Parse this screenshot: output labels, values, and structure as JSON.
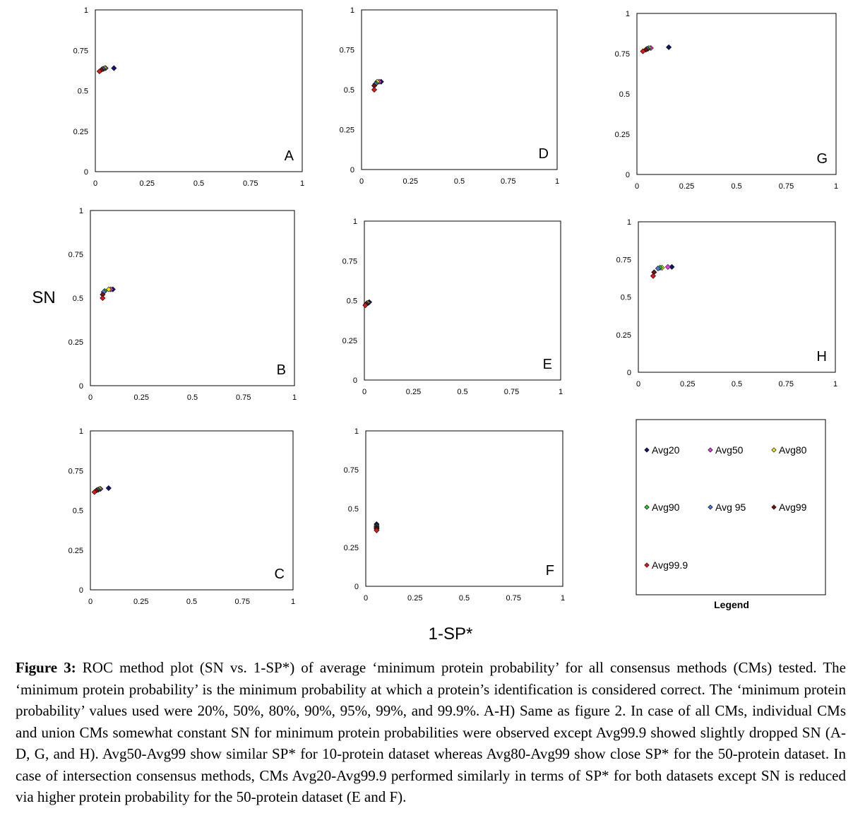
{
  "figure": {
    "y_axis_label": "SN",
    "x_axis_label": "1-SP*",
    "legend_title": "Legend",
    "tick_labels": [
      "0",
      "0.25",
      "0.5",
      "0.75",
      "1"
    ]
  },
  "legend": [
    {
      "name": "Avg20",
      "color": "#14146e"
    },
    {
      "name": "Avg50",
      "color": "#e040e0"
    },
    {
      "name": "Avg80",
      "color": "#e6e61e"
    },
    {
      "name": "Avg90",
      "color": "#2ec82e"
    },
    {
      "name": "Avg 95",
      "color": "#4a78d6"
    },
    {
      "name": "Avg99",
      "color": "#7a1010"
    },
    {
      "name": "Avg99.9",
      "color": "#e01818"
    }
  ],
  "chart_data": [
    {
      "panel": "A",
      "type": "scatter",
      "xlim": [
        0,
        1
      ],
      "ylim": [
        0,
        1
      ],
      "grid": false,
      "series": [
        {
          "name": "Avg20",
          "x": [
            0.09
          ],
          "y": [
            0.64
          ]
        },
        {
          "name": "Avg50",
          "x": [
            0.05
          ],
          "y": [
            0.64
          ]
        },
        {
          "name": "Avg80",
          "x": [
            0.045
          ],
          "y": [
            0.64
          ]
        },
        {
          "name": "Avg90",
          "x": [
            0.04
          ],
          "y": [
            0.635
          ]
        },
        {
          "name": "Avg 95",
          "x": [
            0.035
          ],
          "y": [
            0.635
          ]
        },
        {
          "name": "Avg99",
          "x": [
            0.03
          ],
          "y": [
            0.63
          ]
        },
        {
          "name": "Avg99.9",
          "x": [
            0.02
          ],
          "y": [
            0.62
          ]
        }
      ]
    },
    {
      "panel": "B",
      "type": "scatter",
      "xlim": [
        0,
        1
      ],
      "ylim": [
        0,
        1
      ],
      "grid": false,
      "series": [
        {
          "name": "Avg20",
          "x": [
            0.11
          ],
          "y": [
            0.55
          ]
        },
        {
          "name": "Avg50",
          "x": [
            0.1
          ],
          "y": [
            0.55
          ]
        },
        {
          "name": "Avg80",
          "x": [
            0.09
          ],
          "y": [
            0.55
          ]
        },
        {
          "name": "Avg90",
          "x": [
            0.07
          ],
          "y": [
            0.54
          ]
        },
        {
          "name": "Avg 95",
          "x": [
            0.065
          ],
          "y": [
            0.535
          ]
        },
        {
          "name": "Avg99",
          "x": [
            0.06
          ],
          "y": [
            0.52
          ]
        },
        {
          "name": "Avg99.9",
          "x": [
            0.06
          ],
          "y": [
            0.5
          ]
        }
      ]
    },
    {
      "panel": "C",
      "type": "scatter",
      "xlim": [
        0,
        1
      ],
      "ylim": [
        0,
        1
      ],
      "grid": false,
      "series": [
        {
          "name": "Avg20",
          "x": [
            0.09
          ],
          "y": [
            0.64
          ]
        },
        {
          "name": "Avg50",
          "x": [
            0.05
          ],
          "y": [
            0.635
          ]
        },
        {
          "name": "Avg80",
          "x": [
            0.045
          ],
          "y": [
            0.635
          ]
        },
        {
          "name": "Avg90",
          "x": [
            0.04
          ],
          "y": [
            0.63
          ]
        },
        {
          "name": "Avg 95",
          "x": [
            0.035
          ],
          "y": [
            0.63
          ]
        },
        {
          "name": "Avg99",
          "x": [
            0.03
          ],
          "y": [
            0.625
          ]
        },
        {
          "name": "Avg99.9",
          "x": [
            0.02
          ],
          "y": [
            0.615
          ]
        }
      ]
    },
    {
      "panel": "D",
      "type": "scatter",
      "xlim": [
        0,
        1
      ],
      "ylim": [
        0,
        1
      ],
      "grid": false,
      "series": [
        {
          "name": "Avg20",
          "x": [
            0.1
          ],
          "y": [
            0.55
          ]
        },
        {
          "name": "Avg50",
          "x": [
            0.09
          ],
          "y": [
            0.55
          ]
        },
        {
          "name": "Avg80",
          "x": [
            0.08
          ],
          "y": [
            0.55
          ]
        },
        {
          "name": "Avg90",
          "x": [
            0.075
          ],
          "y": [
            0.54
          ]
        },
        {
          "name": "Avg 95",
          "x": [
            0.07
          ],
          "y": [
            0.535
          ]
        },
        {
          "name": "Avg99",
          "x": [
            0.065
          ],
          "y": [
            0.525
          ]
        },
        {
          "name": "Avg99.9",
          "x": [
            0.065
          ],
          "y": [
            0.5
          ]
        }
      ]
    },
    {
      "panel": "E",
      "type": "scatter",
      "xlim": [
        0,
        1
      ],
      "ylim": [
        0,
        1
      ],
      "grid": false,
      "series": [
        {
          "name": "Avg20",
          "x": [
            0.025
          ],
          "y": [
            0.49
          ]
        },
        {
          "name": "Avg50",
          "x": [
            0.02
          ],
          "y": [
            0.485
          ]
        },
        {
          "name": "Avg80",
          "x": [
            0.015
          ],
          "y": [
            0.485
          ]
        },
        {
          "name": "Avg90",
          "x": [
            0.012
          ],
          "y": [
            0.48
          ]
        },
        {
          "name": "Avg 95",
          "x": [
            0.01
          ],
          "y": [
            0.48
          ]
        },
        {
          "name": "Avg99",
          "x": [
            0.008
          ],
          "y": [
            0.475
          ]
        },
        {
          "name": "Avg99.9",
          "x": [
            0.005
          ],
          "y": [
            0.47
          ]
        }
      ]
    },
    {
      "panel": "F",
      "type": "scatter",
      "xlim": [
        0,
        1
      ],
      "ylim": [
        0,
        1
      ],
      "grid": false,
      "series": [
        {
          "name": "Avg20",
          "x": [
            0.055
          ],
          "y": [
            0.4
          ]
        },
        {
          "name": "Avg50",
          "x": [
            0.055
          ],
          "y": [
            0.39
          ]
        },
        {
          "name": "Avg80",
          "x": [
            0.055
          ],
          "y": [
            0.385
          ]
        },
        {
          "name": "Avg90",
          "x": [
            0.055
          ],
          "y": [
            0.38
          ]
        },
        {
          "name": "Avg 95",
          "x": [
            0.055
          ],
          "y": [
            0.375
          ]
        },
        {
          "name": "Avg99",
          "x": [
            0.055
          ],
          "y": [
            0.37
          ]
        },
        {
          "name": "Avg99.9",
          "x": [
            0.055
          ],
          "y": [
            0.36
          ]
        }
      ]
    },
    {
      "panel": "G",
      "type": "scatter",
      "xlim": [
        0,
        1
      ],
      "ylim": [
        0,
        1
      ],
      "grid": false,
      "series": [
        {
          "name": "Avg20",
          "x": [
            0.16
          ],
          "y": [
            0.79
          ]
        },
        {
          "name": "Avg50",
          "x": [
            0.07
          ],
          "y": [
            0.785
          ]
        },
        {
          "name": "Avg80",
          "x": [
            0.06
          ],
          "y": [
            0.785
          ]
        },
        {
          "name": "Avg90",
          "x": [
            0.055
          ],
          "y": [
            0.78
          ]
        },
        {
          "name": "Avg 95",
          "x": [
            0.05
          ],
          "y": [
            0.78
          ]
        },
        {
          "name": "Avg99",
          "x": [
            0.045
          ],
          "y": [
            0.775
          ]
        },
        {
          "name": "Avg99.9",
          "x": [
            0.03
          ],
          "y": [
            0.765
          ]
        }
      ]
    },
    {
      "panel": "H",
      "type": "scatter",
      "xlim": [
        0,
        1
      ],
      "ylim": [
        0,
        1
      ],
      "grid": false,
      "series": [
        {
          "name": "Avg20",
          "x": [
            0.17
          ],
          "y": [
            0.7
          ]
        },
        {
          "name": "Avg50",
          "x": [
            0.15
          ],
          "y": [
            0.7
          ]
        },
        {
          "name": "Avg80",
          "x": [
            0.12
          ],
          "y": [
            0.695
          ]
        },
        {
          "name": "Avg90",
          "x": [
            0.11
          ],
          "y": [
            0.695
          ]
        },
        {
          "name": "Avg 95",
          "x": [
            0.1
          ],
          "y": [
            0.69
          ]
        },
        {
          "name": "Avg99",
          "x": [
            0.08
          ],
          "y": [
            0.665
          ]
        },
        {
          "name": "Avg99.9",
          "x": [
            0.075
          ],
          "y": [
            0.64
          ]
        }
      ]
    }
  ],
  "caption": {
    "lead": "Figure 3:",
    "text": " ROC method plot (SN vs. 1-SP*) of average ‘minimum protein probability’ for all consensus methods (CMs) tested. The ‘minimum protein probability’ is the minimum probability at which a protein’s identification is considered correct. The ‘minimum protein probability’ values used were 20%, 50%, 80%, 90%, 95%, 99%, and 99.9%. A-H) Same as figure 2. In case of all CMs, individual CMs and union CMs somewhat constant SN for minimum protein probabilities were observed except Avg99.9 showed slightly dropped SN (A-D, G, and H). Avg50-Avg99 show similar SP* for 10-protein dataset whereas Avg80-Avg99 show close SP* for the 50-protein dataset. In case of intersection consensus methods, CMs Avg20-Avg99.9 performed similarly in terms of SP* for both datasets except SN is reduced via higher protein probability for the 50-protein dataset (E and F)."
  }
}
